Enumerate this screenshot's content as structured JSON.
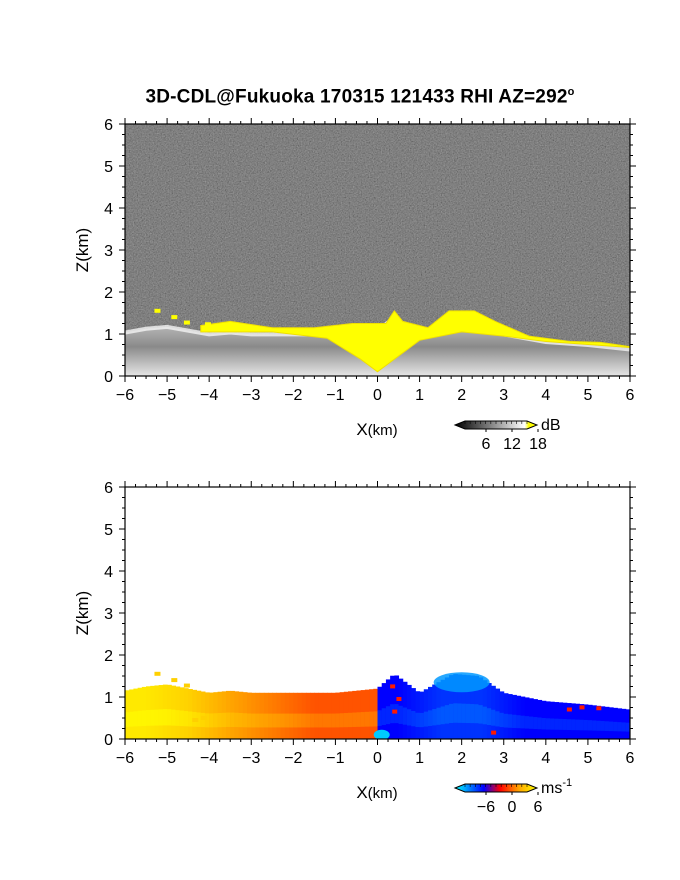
{
  "title": "3D-CDL@Fukuoka 170315 121433 RHI AZ=292",
  "title_sup": "o",
  "chart_data": [
    {
      "type": "heatmap",
      "panel": "top",
      "quantity": "SNR",
      "xlabel_main": "X",
      "xlabel_unit": "(km)",
      "ylabel": "Z(km)",
      "xlim": [
        -6,
        6
      ],
      "ylim": [
        0,
        6
      ],
      "x_ticks": [
        -6,
        -5,
        -4,
        -3,
        -2,
        -1,
        0,
        1,
        2,
        3,
        4,
        5,
        6
      ],
      "y_ticks": [
        0,
        1,
        2,
        3,
        4,
        5,
        6
      ],
      "colorbar": {
        "unit": "dB",
        "ticks": [
          "6",
          "12",
          "18"
        ],
        "range": [
          0,
          20
        ],
        "colors": [
          "#000000",
          "#ffffff",
          "#ffff00"
        ]
      },
      "echo_top_km": [
        {
          "x": -6.0,
          "z": 1.15
        },
        {
          "x": -5.5,
          "z": 1.25
        },
        {
          "x": -5.0,
          "z": 1.3
        },
        {
          "x": -4.5,
          "z": 1.2
        },
        {
          "x": -4.0,
          "z": 1.1
        },
        {
          "x": -3.5,
          "z": 1.15
        },
        {
          "x": -3.0,
          "z": 1.1
        },
        {
          "x": -2.0,
          "z": 1.1
        },
        {
          "x": -1.0,
          "z": 1.1
        },
        {
          "x": -0.5,
          "z": 1.15
        },
        {
          "x": 0.0,
          "z": 1.2
        },
        {
          "x": 0.4,
          "z": 1.55
        },
        {
          "x": 1.0,
          "z": 1.1
        },
        {
          "x": 1.8,
          "z": 1.55
        },
        {
          "x": 2.4,
          "z": 1.5
        },
        {
          "x": 3.0,
          "z": 1.1
        },
        {
          "x": 4.0,
          "z": 0.9
        },
        {
          "x": 5.0,
          "z": 0.82
        },
        {
          "x": 6.0,
          "z": 0.7
        }
      ]
    },
    {
      "type": "heatmap",
      "panel": "bottom",
      "quantity": "Doppler velocity",
      "xlabel_main": "X",
      "xlabel_unit": "(km)",
      "ylabel": "Z(km)",
      "xlim": [
        -6,
        6
      ],
      "ylim": [
        0,
        6
      ],
      "x_ticks": [
        -6,
        -5,
        -4,
        -3,
        -2,
        -1,
        0,
        1,
        2,
        3,
        4,
        5,
        6
      ],
      "y_ticks": [
        0,
        1,
        2,
        3,
        4,
        5,
        6
      ],
      "colorbar": {
        "unit": "ms",
        "unit_sup": "-1",
        "ticks": [
          "−6",
          "0",
          "6"
        ],
        "range": [
          -8,
          8
        ],
        "colors": [
          "#00ffff",
          "#0000ff",
          "#ff0000",
          "#ffa500",
          "#ffff00"
        ]
      },
      "velocity_ms": [
        {
          "x": -5.5,
          "v": 7
        },
        {
          "x": -4.5,
          "v": 6
        },
        {
          "x": -3.5,
          "v": 4
        },
        {
          "x": -2.5,
          "v": 3
        },
        {
          "x": -1.5,
          "v": 2
        },
        {
          "x": -0.5,
          "v": 2
        },
        {
          "x": 0.5,
          "v": -3
        },
        {
          "x": 1.5,
          "v": -4
        },
        {
          "x": 2.5,
          "v": -4
        },
        {
          "x": 3.5,
          "v": -3
        },
        {
          "x": 4.5,
          "v": -3
        },
        {
          "x": 5.5,
          "v": -3
        }
      ]
    }
  ]
}
